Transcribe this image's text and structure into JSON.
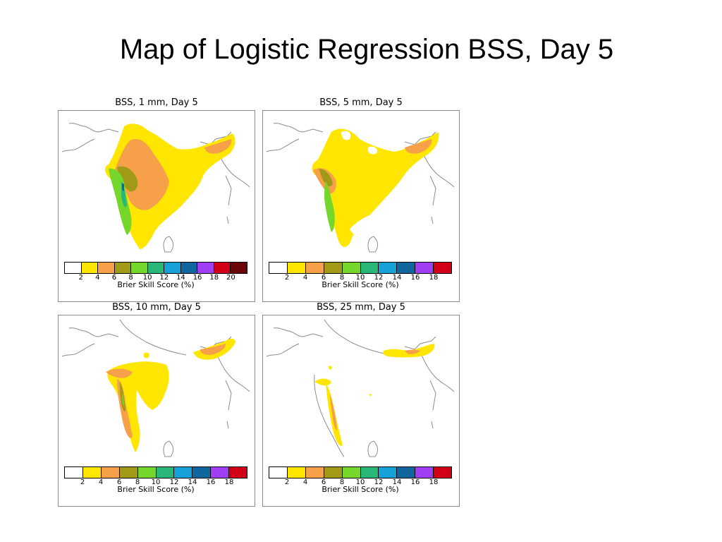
{
  "slide": {
    "title": "Map of Logistic Regression BSS, Day 5"
  },
  "colors": {
    "bins": [
      "#ffffff",
      "#ffe600",
      "#f7a04a",
      "#a09a17",
      "#75d62b",
      "#29b779",
      "#16a2d8",
      "#10669e",
      "#9f3ef2",
      "#d10016",
      "#6b0508"
    ],
    "outline": "#8c8c8c"
  },
  "panels": [
    {
      "title": "BSS, 1 mm, Day 5",
      "colorbar": {
        "ticks": [
          "2",
          "4",
          "6",
          "8",
          "10",
          "12",
          "14",
          "16",
          "18",
          "20"
        ],
        "label": "Brier Skill Score (%)"
      }
    },
    {
      "title": "BSS, 5 mm, Day 5",
      "colorbar": {
        "ticks": [
          "2",
          "4",
          "6",
          "8",
          "10",
          "12",
          "14",
          "16",
          "18"
        ],
        "label": "Brier Skill Score (%)"
      }
    },
    {
      "title": "BSS, 10 mm, Day 5",
      "colorbar": {
        "ticks": [
          "2",
          "4",
          "6",
          "8",
          "10",
          "12",
          "14",
          "16",
          "18"
        ],
        "label": "Brier Skill Score (%)"
      }
    },
    {
      "title": "BSS, 25 mm, Day 5",
      "colorbar": {
        "ticks": [
          "2",
          "4",
          "6",
          "8",
          "10",
          "12",
          "14",
          "16",
          "18"
        ],
        "label": "Brier Skill Score (%)"
      }
    }
  ]
}
